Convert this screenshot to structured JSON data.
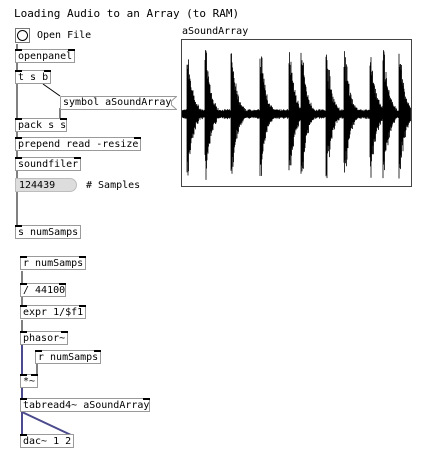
{
  "patch": {
    "title": "Loading Audio to an Array (to RAM)",
    "open_file_label": "Open File",
    "samples_label": "# Samples"
  },
  "objects": {
    "openpanel": "openpanel",
    "trigger": "t s b",
    "symbol_msg": "symbol aSoundArray",
    "pack": "pack s s",
    "prepend": "prepend read -resize",
    "soundfiler": "soundfiler",
    "num_samples": "124439",
    "send_numsamps": "s numSamps",
    "recv_numsamps_1": "r numSamps",
    "divide": "/ 44100",
    "expr": "expr 1/$f1",
    "phasor": "phasor~",
    "recv_numsamps_2": "r numSamps",
    "multiply": "*~",
    "tabread": "tabread4~ aSoundArray",
    "dac": "dac~ 1 2"
  },
  "array": {
    "name": "aSoundArray"
  },
  "colors": {
    "control_wire": "#000000",
    "signal_wire": "#4a4a8c",
    "box_border": "#9a9a9a",
    "number_box_fill": "#dddddd"
  }
}
